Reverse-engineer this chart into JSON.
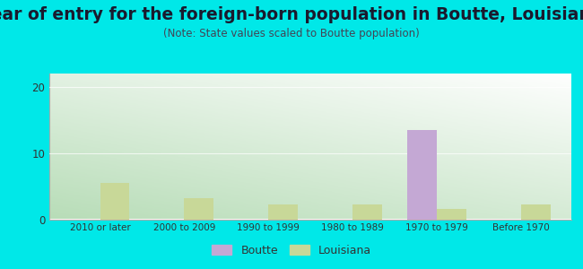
{
  "title": "Year of entry for the foreign-born population in Boutte, Louisiana",
  "subtitle": "(Note: State values scaled to Boutte population)",
  "categories": [
    "2010 or later",
    "2000 to 2009",
    "1990 to 1999",
    "1980 to 1989",
    "1970 to 1979",
    "Before 1970"
  ],
  "boutte_values": [
    0,
    0,
    0,
    0,
    13.5,
    0
  ],
  "louisiana_values": [
    5.5,
    3.2,
    2.2,
    2.2,
    1.6,
    2.2
  ],
  "boutte_color": "#c4a8d4",
  "louisiana_color": "#c8d898",
  "outer_bg": "#00e8e8",
  "ylim": [
    0,
    22
  ],
  "yticks": [
    0,
    10,
    20
  ],
  "bar_width": 0.35,
  "title_fontsize": 13.5,
  "subtitle_fontsize": 8.5,
  "grad_bottom_left": "#b8ddb8",
  "grad_top_right": "#ffffff"
}
